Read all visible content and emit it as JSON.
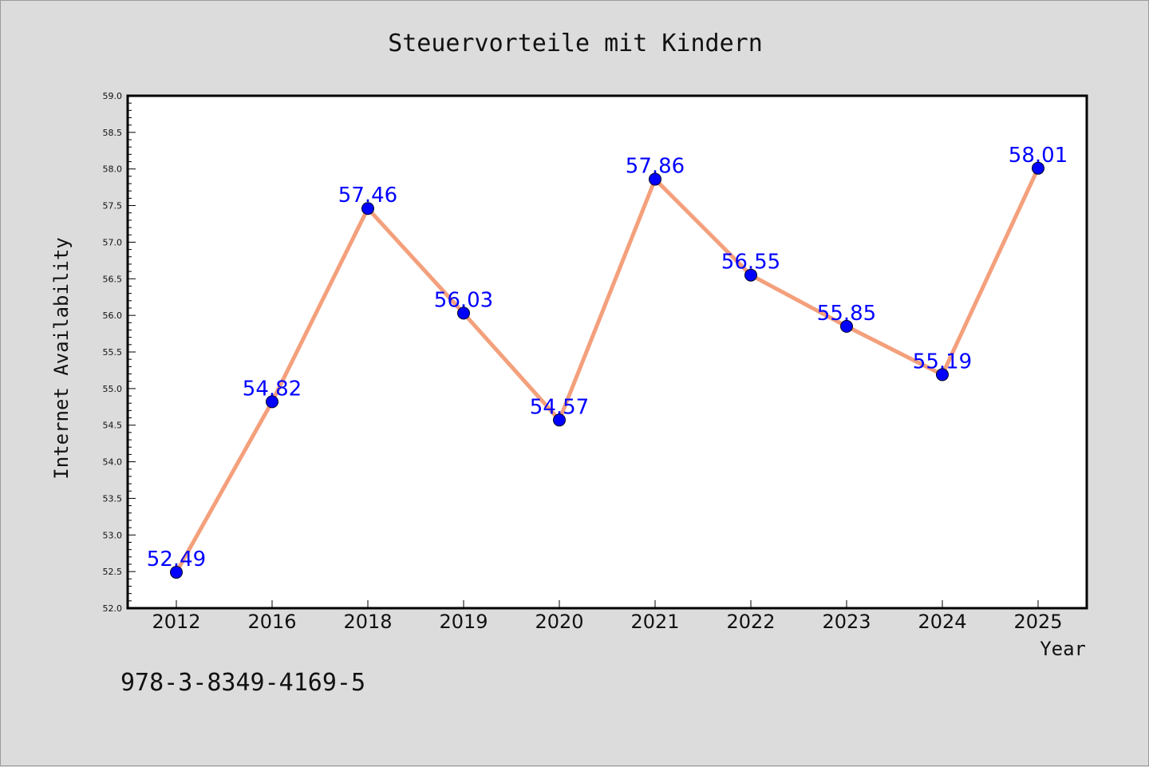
{
  "chart_data": {
    "type": "line",
    "title": "Steuervorteile mit Kindern",
    "xlabel": "Year",
    "ylabel": "Internet Availability",
    "categories": [
      "2012",
      "2016",
      "2018",
      "2019",
      "2020",
      "2021",
      "2022",
      "2023",
      "2024",
      "2025"
    ],
    "series": [
      {
        "values": [
          52.49,
          54.82,
          57.46,
          56.03,
          54.57,
          57.86,
          56.55,
          55.85,
          55.19,
          58.01
        ],
        "data_labels": [
          "52.49",
          "54.82",
          "57.46",
          "56.03",
          "54.57",
          "57.86",
          "56.55",
          "55.85",
          "55.19",
          "58.01"
        ],
        "line_color": "#f4a07c",
        "marker_color": "#0000ff"
      }
    ],
    "ylim": [
      52.0,
      59.0
    ],
    "yticks": [
      "52.0",
      "52.5",
      "53.0",
      "53.5",
      "54.0",
      "54.5",
      "55.0",
      "55.5",
      "56.0",
      "56.5",
      "57.0",
      "57.5",
      "58.0",
      "58.5",
      "59.0"
    ],
    "grid": false,
    "legend": "none"
  },
  "footer": {
    "text": "978-3-8349-4169-5"
  },
  "colors": {
    "background": "#dcdcdc",
    "plot_background": "#ffffff",
    "line": "#f4a07c",
    "marker": "#0000ff",
    "label": "#0000ff"
  }
}
